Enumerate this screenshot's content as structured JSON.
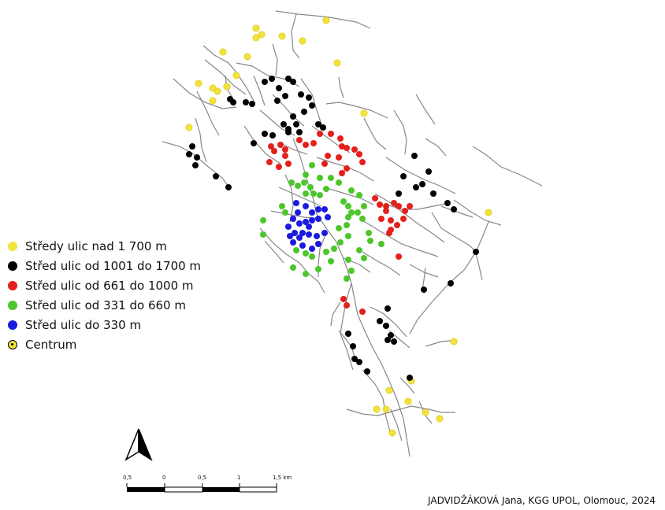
{
  "legend": {
    "items": [
      {
        "label": "Středy ulic nad 1 700 m",
        "color": "#f2e33a",
        "kind": "dot"
      },
      {
        "label": "Střed ulic od 1001 do 1700 m",
        "color": "#000000",
        "kind": "dot"
      },
      {
        "label": "Střed ulic od 661 do 1000 m",
        "color": "#e3201b",
        "kind": "dot"
      },
      {
        "label": "Střed ulic od 331 do 660 m",
        "color": "#4cc62b",
        "kind": "dot"
      },
      {
        "label": "Střed ulic do 330 m",
        "color": "#1a1ae0",
        "kind": "dot"
      },
      {
        "label": "Centrum",
        "color": "#f2e33a",
        "kind": "centrum"
      }
    ]
  },
  "scale_bar": {
    "labels": [
      "0,5",
      "0",
      "0,5",
      "1",
      "1,5 km"
    ]
  },
  "credit": "JADVIDŽÁKOVÁ Jana, KGG UPOL, Olomouc, 2024",
  "colors": {
    "road": "#888888",
    "yellow": "#f2e33a",
    "black": "#000000",
    "red": "#e3201b",
    "green": "#4cc62b",
    "blue": "#1a1ae0"
  },
  "icons": {
    "north_arrow": "north-arrow-icon"
  }
}
